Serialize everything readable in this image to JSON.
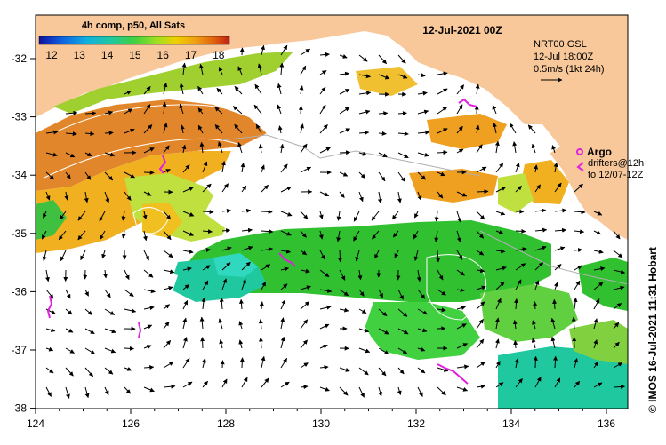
{
  "map": {
    "date_title": "12-Jul-2021 00Z",
    "colorbar": {
      "title": "4h comp, p50, All Sats",
      "tick_labels": [
        "12",
        "13",
        "14",
        "15",
        "16",
        "17",
        "18"
      ],
      "colors": [
        "#1010a0",
        "#1060e0",
        "#10b0e0",
        "#20c8a0",
        "#40d040",
        "#a0e020",
        "#f0d000",
        "#f0a010",
        "#e06010",
        "#c02010"
      ]
    },
    "currents_info": {
      "line1": "NRT00 GSL",
      "line2": "12-Jul 18:00Z",
      "line3": "0.5m/s (1kt 24h)"
    },
    "argo_legend": {
      "argo_label": "Argo",
      "drifters_line1": "drifters@12h",
      "drifters_line2": "to 12/07-12Z"
    },
    "credit": "© IMOS 16-Jul-2021 11:31 Hobart",
    "longitude_ticks": [
      "124",
      "126",
      "128",
      "130",
      "132",
      "134",
      "136"
    ],
    "latitude_ticks": [
      "-32",
      "-33",
      "-34",
      "-35",
      "-36",
      "-37",
      "-38"
    ],
    "colors": {
      "land": "#f8c89a",
      "no_data": "#ffffff",
      "argo": "#e020e0"
    }
  }
}
